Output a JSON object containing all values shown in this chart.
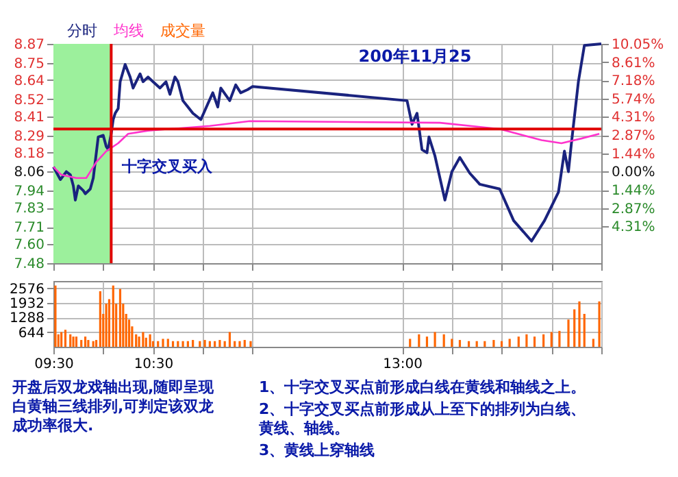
{
  "chart_data": [
    {
      "type": "line",
      "xlim": [
        9.5,
        15
      ],
      "ylim": [
        7.48,
        8.87
      ],
      "xticks": [
        {
          "value": 9.5,
          "label": null
        },
        {
          "value": 10,
          "label": null
        },
        {
          "value": 10.5,
          "label": null
        },
        {
          "value": 11,
          "label": null
        },
        {
          "value": 11.5,
          "label": null
        },
        {
          "value": 13,
          "label": null
        },
        {
          "value": 13.5,
          "label": null
        },
        {
          "value": 14,
          "label": null
        },
        {
          "value": 14.5,
          "label": null
        },
        {
          "value": 15,
          "label": null
        }
      ],
      "yticks": [
        8.87,
        8.75,
        8.64,
        8.52,
        8.41,
        8.29,
        8.18,
        8.06,
        7.94,
        7.83,
        7.71,
        {
          "value": 7.6,
          "label": "7.60"
        },
        7.48
      ],
      "y2lim": [
        -7.2,
        10.05
      ],
      "y2ticks": [
        {
          "value": 10.05,
          "label": "10.05%"
        },
        {
          "value": 8.61,
          "label": "8.61%"
        },
        {
          "value": 7.18,
          "label": "7.18%"
        },
        {
          "value": 5.74,
          "label": "5.74%"
        },
        {
          "value": 4.31,
          "label": "4.31%"
        },
        {
          "value": 2.87,
          "label": "2.87%"
        },
        {
          "value": 1.44,
          "label": "1.44%"
        },
        {
          "value": 0,
          "label": "0.00%"
        },
        {
          "value": -1.44,
          "label": "1.44%"
        },
        {
          "value": -2.87,
          "label": "2.87%"
        },
        {
          "value": -4.31,
          "label": "4.31%"
        }
      ],
      "tick_labels": "y",
      "grid": true,
      "series": [
        {
          "name": "分时",
          "color": "#1a237e",
          "x": [
            9.5,
            9.57,
            9.63,
            9.67,
            9.7,
            9.72,
            9.75,
            9.8,
            9.82,
            9.87,
            9.9,
            9.95,
            10,
            10.03,
            10.05,
            10.08,
            10.1,
            10.12,
            10.15,
            10.17,
            10.22,
            10.27,
            10.3,
            10.37,
            10.4,
            10.45,
            10.5,
            10.57,
            10.63,
            10.67,
            10.72,
            10.75,
            10.8,
            10.85,
            10.9,
            10.98,
            11.05,
            11.1,
            11.15,
            11.18,
            11.27,
            11.33,
            11.38,
            11.45,
            11.5,
            13.05,
            13.1,
            13.15,
            13.2,
            13.25,
            13.27,
            13.33,
            13.43,
            13.5,
            13.58,
            13.68,
            13.78,
            13.98,
            14.12,
            14.3,
            14.43,
            14.57,
            14.63,
            14.67,
            14.7,
            14.77,
            14.83,
            15
          ],
          "values": [
            8.09,
            8.01,
            8.06,
            8.04,
            7.97,
            7.88,
            7.97,
            7.94,
            7.92,
            7.95,
            8.02,
            8.28,
            8.29,
            8.22,
            8.2,
            8.3,
            8.39,
            8.43,
            8.46,
            8.63,
            8.74,
            8.66,
            8.59,
            8.68,
            8.63,
            8.66,
            8.63,
            8.59,
            8.63,
            8.55,
            8.66,
            8.63,
            8.51,
            8.47,
            8.43,
            8.39,
            8.49,
            8.56,
            8.47,
            8.59,
            8.51,
            8.61,
            8.56,
            8.58,
            8.6,
            8.51,
            8.36,
            8.43,
            8.2,
            8.18,
            8.28,
            8.16,
            7.88,
            8.06,
            8.15,
            8.05,
            7.98,
            7.95,
            7.75,
            7.62,
            7.75,
            7.93,
            8.19,
            8.06,
            8.24,
            8.63,
            8.86,
            8.87
          ]
        },
        {
          "name": "均线",
          "color": "#ff33cc",
          "x": [
            9.5,
            9.58,
            9.73,
            9.83,
            9.93,
            10.03,
            10.15,
            10.25,
            10.45,
            11.07,
            11.47,
            13.38,
            13.98,
            14.4,
            14.6,
            14.8,
            14.98
          ],
          "values": [
            8.09,
            8.04,
            8.02,
            8.02,
            8.12,
            8.19,
            8.24,
            8.3,
            8.32,
            8.35,
            8.38,
            8.37,
            8.33,
            8.26,
            8.24,
            8.27,
            8.3
          ]
        }
      ],
      "bands": [
        {
          "axis": "x",
          "from": 9.5,
          "to": 10.08,
          "color": "#9cf09c"
        }
      ],
      "ref_lines": [
        {
          "axis": "x",
          "value": 10.08,
          "color": "#e00000"
        },
        {
          "axis": "y",
          "value": 8.33,
          "color": "#e00000"
        }
      ],
      "annotations": [
        "200年11月25",
        {
          "text": "十字交叉买入",
          "x": 10.08,
          "y": 8.33
        },
        "开盘后双龙戏轴出现,随即呈现白黄轴三线排列,可判定该双龙成功率很大.",
        "1、十字交叉买点前形成白线在黄线和轴线之上。",
        "2、十字交叉买点前形成从上至下的排列为白线、黄线、轴线。",
        "3、黄线上穿轴线"
      ]
    },
    {
      "type": "bar",
      "xlim": [
        9.5,
        15
      ],
      "ylim": [
        0,
        2900
      ],
      "xticks": [
        {
          "value": 9.5,
          "label": "09:30"
        },
        {
          "value": 10,
          "label": null
        },
        {
          "value": 10.5,
          "label": "10:30"
        },
        {
          "value": 11,
          "label": null
        },
        {
          "value": 11.5,
          "label": null
        },
        {
          "value": 13,
          "label": "13:00"
        },
        {
          "value": 13.5,
          "label": null
        },
        {
          "value": 14,
          "label": null
        },
        {
          "value": 14.5,
          "label": null
        },
        {
          "value": 15,
          "label": null
        }
      ],
      "yticks": [
        644,
        1288,
        1932,
        2576
      ],
      "grid": true,
      "series": [
        {
          "name": "成交量",
          "color": "#ff6600",
          "x": [
            9.52,
            9.55,
            9.58,
            9.62,
            9.67,
            9.7,
            9.73,
            9.78,
            9.82,
            9.85,
            9.9,
            9.93,
            9.97,
            10,
            10.03,
            10.06,
            10.1,
            10.13,
            10.17,
            10.2,
            10.23,
            10.26,
            10.29,
            10.33,
            10.36,
            10.4,
            10.43,
            10.47,
            10.5,
            10.55,
            10.6,
            10.65,
            10.7,
            10.75,
            10.8,
            10.85,
            10.9,
            10.97,
            11.02,
            11.07,
            11.12,
            11.17,
            11.22,
            11.27,
            11.32,
            11.37,
            11.42,
            11.48,
            13.08,
            13.17,
            13.25,
            13.33,
            13.42,
            13.5,
            13.58,
            13.67,
            13.75,
            13.83,
            13.92,
            14,
            14.08,
            14.17,
            14.25,
            14.33,
            14.42,
            14.5,
            14.58,
            14.67,
            14.73,
            14.78,
            14.83,
            14.92,
            14.98
          ],
          "values": [
            2700,
            550,
            650,
            750,
            550,
            450,
            450,
            300,
            450,
            300,
            250,
            300,
            2450,
            1450,
            1900,
            2100,
            2700,
            1900,
            2550,
            1900,
            1450,
            1200,
            900,
            550,
            450,
            650,
            400,
            550,
            250,
            250,
            350,
            350,
            250,
            250,
            250,
            250,
            300,
            250,
            300,
            250,
            250,
            300,
            250,
            650,
            250,
            250,
            300,
            250,
            350,
            550,
            450,
            650,
            550,
            350,
            300,
            250,
            250,
            250,
            300,
            250,
            350,
            450,
            550,
            450,
            550,
            650,
            700,
            1200,
            1650,
            2000,
            1450,
            350,
            2000
          ]
        }
      ]
    }
  ]
}
